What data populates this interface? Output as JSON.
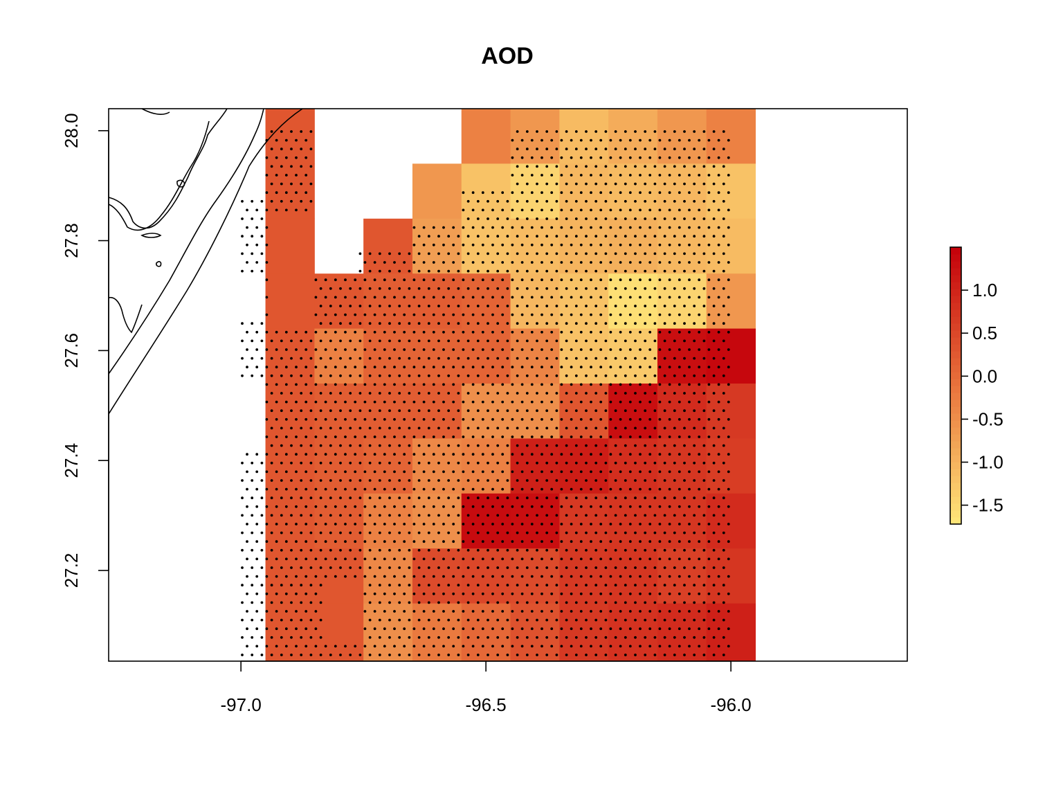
{
  "chart_data": {
    "type": "heatmap",
    "title": "AOD",
    "xlabel": "",
    "ylabel": "",
    "xlim": [
      -97.27,
      -95.64
    ],
    "ylim": [
      27.035,
      28.04
    ],
    "x_ticks": [
      -97.0,
      -96.5,
      -96.0
    ],
    "x_tick_labels": [
      "-97.0",
      "-96.5",
      "-96.0"
    ],
    "y_ticks": [
      27.2,
      27.4,
      27.6,
      27.8,
      28.0
    ],
    "y_tick_labels": [
      "27.2",
      "27.4",
      "27.6",
      "27.8",
      "28.0"
    ],
    "grid": false,
    "legend": {
      "type": "colorbar",
      "position": "right",
      "zlim": [
        -1.72,
        1.5
      ],
      "ticks": [
        1.0,
        0.5,
        0.0,
        -0.5,
        -1.0,
        -1.5
      ],
      "tick_labels": [
        "1.0",
        "0.5",
        "0.0",
        "-0.5",
        "-1.0",
        "-1.5"
      ]
    },
    "colors": {
      "high": "#c4000a",
      "low": "#ffe87a",
      "points": "#000000",
      "coastline": "#000000"
    },
    "cell_grid": {
      "x_edges": [
        -96.95,
        -96.85,
        -96.75,
        -96.65,
        -96.55,
        -96.45,
        -96.35,
        -96.25,
        -96.15,
        -96.05,
        -95.95
      ],
      "y_edges_top_to_bottom": [
        28.04,
        27.94,
        27.84,
        27.74,
        27.64,
        27.54,
        27.44,
        27.34,
        27.24,
        27.14,
        27.035
      ],
      "values_rows_top_to_bottom": [
        [
          0.3,
          null,
          null,
          null,
          -0.3,
          -0.6,
          -1.1,
          -0.9,
          -0.6,
          -0.3
        ],
        [
          0.3,
          null,
          null,
          -0.6,
          -1.2,
          -1.45,
          -1.05,
          -1.1,
          -1.05,
          -1.2
        ],
        [
          0.3,
          null,
          0.3,
          -0.7,
          -1.2,
          -1.1,
          -1.0,
          -0.95,
          -1.05,
          -1.1
        ],
        [
          0.3,
          0.3,
          0.2,
          0.2,
          0.1,
          -1.05,
          -1.2,
          -1.6,
          -1.45,
          -0.6
        ],
        [
          0.3,
          -0.3,
          0.1,
          0.1,
          0.1,
          -0.35,
          -1.2,
          -1.3,
          1.3,
          1.4
        ],
        [
          0.3,
          0.2,
          0.2,
          0.2,
          -0.5,
          -0.5,
          0.3,
          1.3,
          0.9,
          0.7
        ],
        [
          0.3,
          0.2,
          0.1,
          -0.4,
          -0.3,
          1.05,
          1.1,
          0.85,
          0.75,
          0.65
        ],
        [
          0.3,
          0.2,
          -0.3,
          -0.5,
          1.35,
          1.3,
          0.7,
          0.75,
          0.75,
          0.9
        ],
        [
          0.3,
          0.3,
          -0.4,
          0.45,
          0.5,
          0.45,
          0.7,
          0.75,
          0.6,
          0.75
        ],
        [
          0.3,
          0.3,
          -0.5,
          -0.2,
          0.05,
          0.35,
          0.7,
          0.8,
          0.9,
          1.05
        ]
      ]
    }
  }
}
